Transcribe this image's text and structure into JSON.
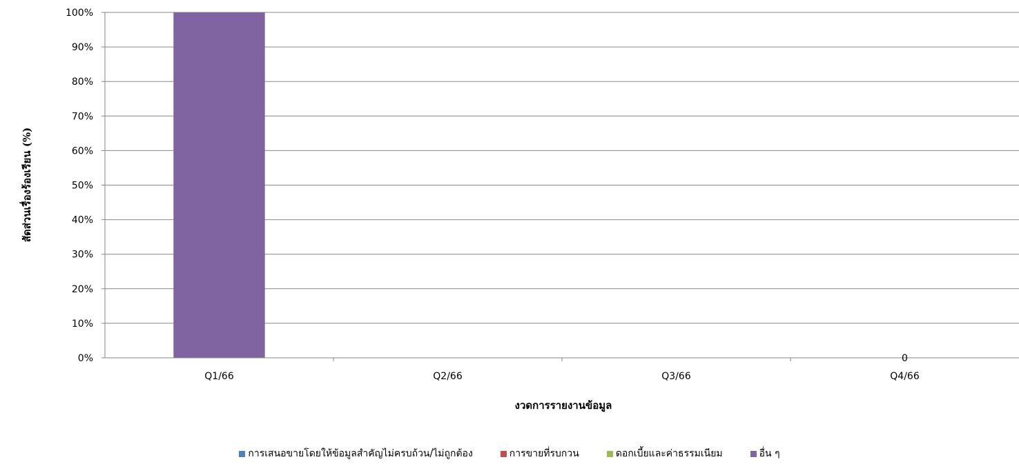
{
  "chart_data": {
    "type": "bar",
    "stacked": true,
    "title": "",
    "xlabel": "งวดการรายงานข้อมูล",
    "ylabel": "สัดส่วนเรื่องร้องเรียน (%)",
    "categories": [
      "Q1/66",
      "Q2/66",
      "Q3/66",
      "Q4/66"
    ],
    "ylim": [
      0,
      100
    ],
    "yticks": [
      "0%",
      "10%",
      "20%",
      "30%",
      "40%",
      "50%",
      "60%",
      "70%",
      "80%",
      "90%",
      "100%"
    ],
    "grid": true,
    "legend_position": "bottom",
    "series": [
      {
        "name": "การเสนอขายโดยให้ข้อมูลสำคัญไม่ครบถ้วน/ไม่ถูกต้อง",
        "color": "#4F81BD",
        "values": [
          0,
          0,
          0,
          0
        ]
      },
      {
        "name": "การขายที่รบกวน",
        "color": "#C0504D",
        "values": [
          0,
          0,
          0,
          0
        ]
      },
      {
        "name": "ดอกเบี้ยและค่าธรรมเนียม",
        "color": "#9BBB59",
        "values": [
          0,
          0,
          0,
          0
        ]
      },
      {
        "name": "อื่น ๆ",
        "color": "#8064A2",
        "values": [
          100,
          0,
          0,
          0
        ]
      }
    ],
    "annotations": [
      {
        "category": "Q4/66",
        "text": "0"
      }
    ]
  }
}
